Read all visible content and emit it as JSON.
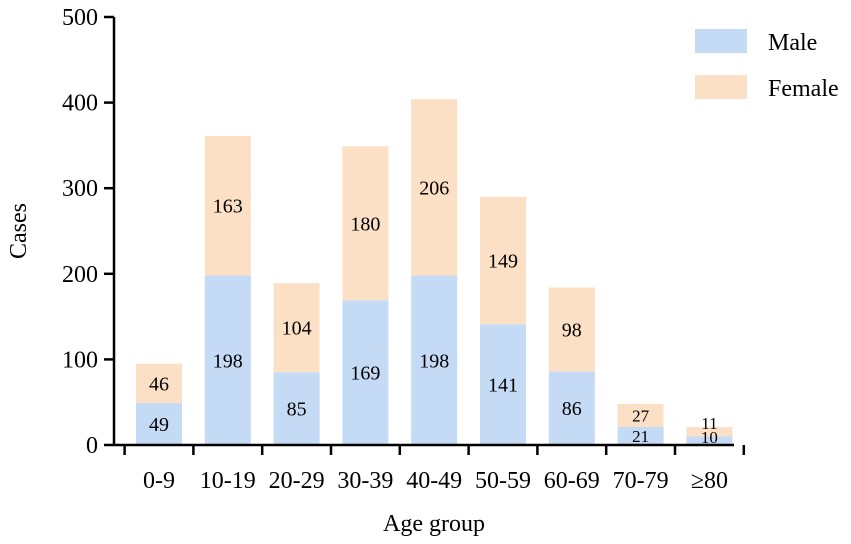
{
  "chart_data": {
    "type": "bar",
    "stacked": true,
    "categories": [
      "0-9",
      "10-19",
      "20-29",
      "30-39",
      "40-49",
      "50-59",
      "60-69",
      "70-79",
      "≥80"
    ],
    "series": [
      {
        "name": "Male",
        "values": [
          49,
          198,
          85,
          169,
          198,
          141,
          86,
          21,
          10
        ],
        "color": "#c5daf5"
      },
      {
        "name": "Female",
        "values": [
          46,
          163,
          104,
          180,
          206,
          149,
          98,
          27,
          11
        ],
        "color": "#fce0c6"
      }
    ],
    "xlabel": "Age group",
    "ylabel": "Cases",
    "ylim": [
      0,
      500
    ],
    "yticks": [
      0,
      100,
      200,
      300,
      400,
      500
    ],
    "grid": false,
    "legend_position": "top-right"
  }
}
